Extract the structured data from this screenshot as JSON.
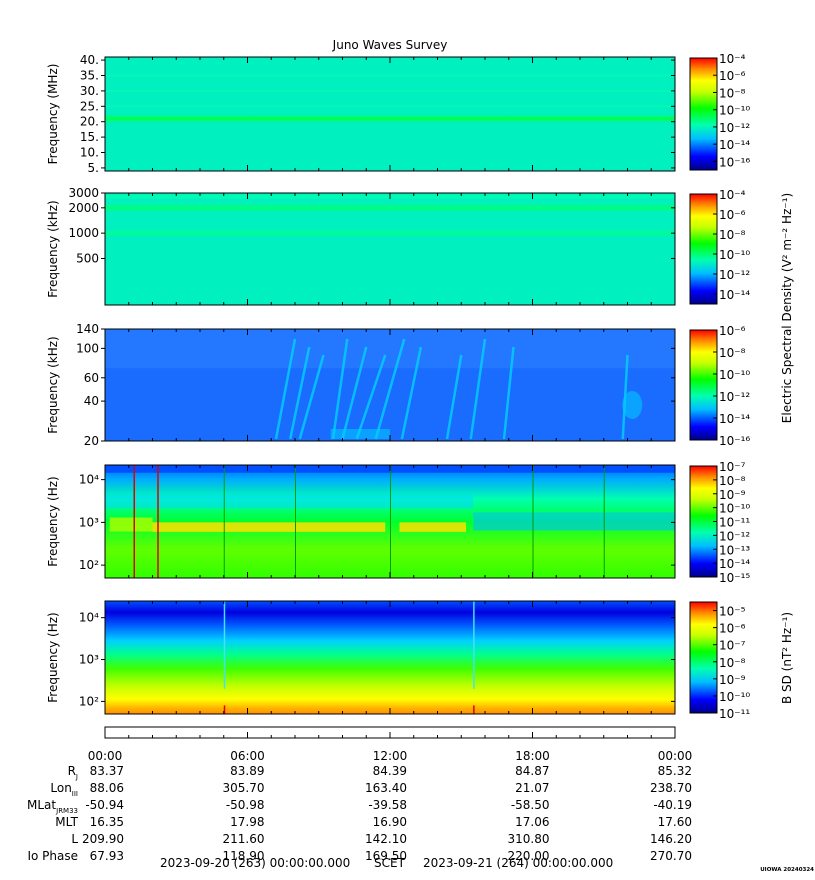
{
  "title": "Juno Waves Survey",
  "footer": {
    "start": "2023-09-20 (263) 00:00:00.000",
    "scet": "SCET",
    "end": "2023-09-21 (264) 00:00:00.000",
    "credit": "UIOWA 20240324"
  },
  "time_ticks": [
    "00:00",
    "06:00",
    "12:00",
    "18:00",
    "00:00"
  ],
  "ephemeris": [
    {
      "label": "R",
      "sub": "J",
      "values": [
        "83.37",
        "83.89",
        "84.39",
        "84.87",
        "85.32"
      ]
    },
    {
      "label": "Lon",
      "sub": "III",
      "values": [
        "88.06",
        "305.70",
        "163.40",
        "21.07",
        "238.70"
      ]
    },
    {
      "label": "MLat",
      "sub": "JRM33",
      "values": [
        "-50.94",
        "-50.98",
        "-39.58",
        "-58.50",
        "-40.19"
      ]
    },
    {
      "label": "MLT",
      "sub": "",
      "values": [
        "16.35",
        "17.98",
        "16.90",
        "17.06",
        "17.60"
      ]
    },
    {
      "label": "L",
      "sub": "",
      "values": [
        "209.90",
        "211.60",
        "142.10",
        "310.80",
        "146.20"
      ]
    },
    {
      "label": "Io Phase",
      "sub": "",
      "values": [
        "67.93",
        "118.90",
        "169.50",
        "220.00",
        "270.70"
      ]
    }
  ],
  "colorbar_labels": {
    "electric": "Electric Spectral Density (V² m⁻² Hz⁻¹)",
    "magnetic": "B SD (nT² Hz⁻¹)"
  },
  "chart_data": [
    {
      "type": "heatmap",
      "ylabel": "Frequency (MHz)",
      "yscale": "linear",
      "ylim": [
        4,
        41
      ],
      "yticks": [
        5,
        10,
        15,
        20,
        25,
        30,
        35,
        40
      ],
      "ytick_labels": [
        "5.",
        "10.",
        "15.",
        "20.",
        "25.",
        "30.",
        "35.",
        "40."
      ],
      "colorbar": {
        "exponents": [
          -16,
          -14,
          -12,
          -10,
          -8,
          -6,
          -4
        ],
        "range": [
          -17,
          -4
        ]
      },
      "xlim_hours": [
        0,
        24
      ],
      "features": "uniform background near 1e-12 with a brighter band at 21 MHz"
    },
    {
      "type": "heatmap",
      "ylabel": "Frequency (kHz)",
      "yscale": "log",
      "ylim": [
        140,
        3000
      ],
      "yticks": [
        500,
        1000,
        2000,
        3000
      ],
      "ytick_labels": [
        "500",
        "1000",
        "2000",
        "3000"
      ],
      "colorbar": {
        "exponents": [
          -14,
          -12,
          -10,
          -8,
          -6,
          -4
        ],
        "range": [
          -15,
          -4
        ]
      },
      "xlim_hours": [
        0,
        24
      ],
      "features": "uniform background near 1e-12 with faint bands near 2000 and 1000 kHz"
    },
    {
      "type": "heatmap",
      "ylabel": "Frequency (kHz)",
      "yscale": "log",
      "ylim": [
        20,
        140
      ],
      "yticks": [
        20,
        40,
        60,
        100,
        140
      ],
      "ytick_labels": [
        "20",
        "40",
        "60",
        "100",
        "140"
      ],
      "colorbar": {
        "exponents": [
          -16,
          -14,
          -12,
          -10,
          -8,
          -6
        ],
        "range": [
          -16,
          -6
        ]
      },
      "xlim_hours": [
        0,
        24
      ],
      "features": "blue background near 1e-14 with drifting cyan emissions between 8h and 24h"
    },
    {
      "type": "heatmap",
      "ylabel": "Frequency (Hz)",
      "yscale": "log",
      "ylim": [
        50,
        22000
      ],
      "yticks": [
        100,
        1000,
        10000
      ],
      "ytick_labels": [
        "10²",
        "10³",
        "10⁴"
      ],
      "colorbar": {
        "exponents": [
          -15,
          -14,
          -13,
          -12,
          -11,
          -10,
          -9,
          -8,
          -7
        ],
        "range": [
          -15,
          -7
        ]
      },
      "xlim_hours": [
        0,
        24
      ],
      "features": "yellow emission band near 700-1000 Hz from 2h to 15h, gap near 12h, cutoff shift near 15.5h"
    },
    {
      "type": "heatmap",
      "ylabel": "Frequency (Hz)",
      "yscale": "log",
      "ylim": [
        50,
        25000
      ],
      "yticks": [
        100,
        1000,
        10000
      ],
      "ytick_labels": [
        "10²",
        "10³",
        "10⁴"
      ],
      "colorbar": {
        "exponents": [
          -11,
          -10,
          -9,
          -8,
          -7,
          -6,
          -5
        ],
        "range": [
          -11,
          -4.5
        ]
      },
      "xlim_hours": [
        0,
        24
      ],
      "features": "smooth gradient from orange at 50 Hz to blue near 10 kHz, spikes at 5h and 15.5h"
    }
  ]
}
